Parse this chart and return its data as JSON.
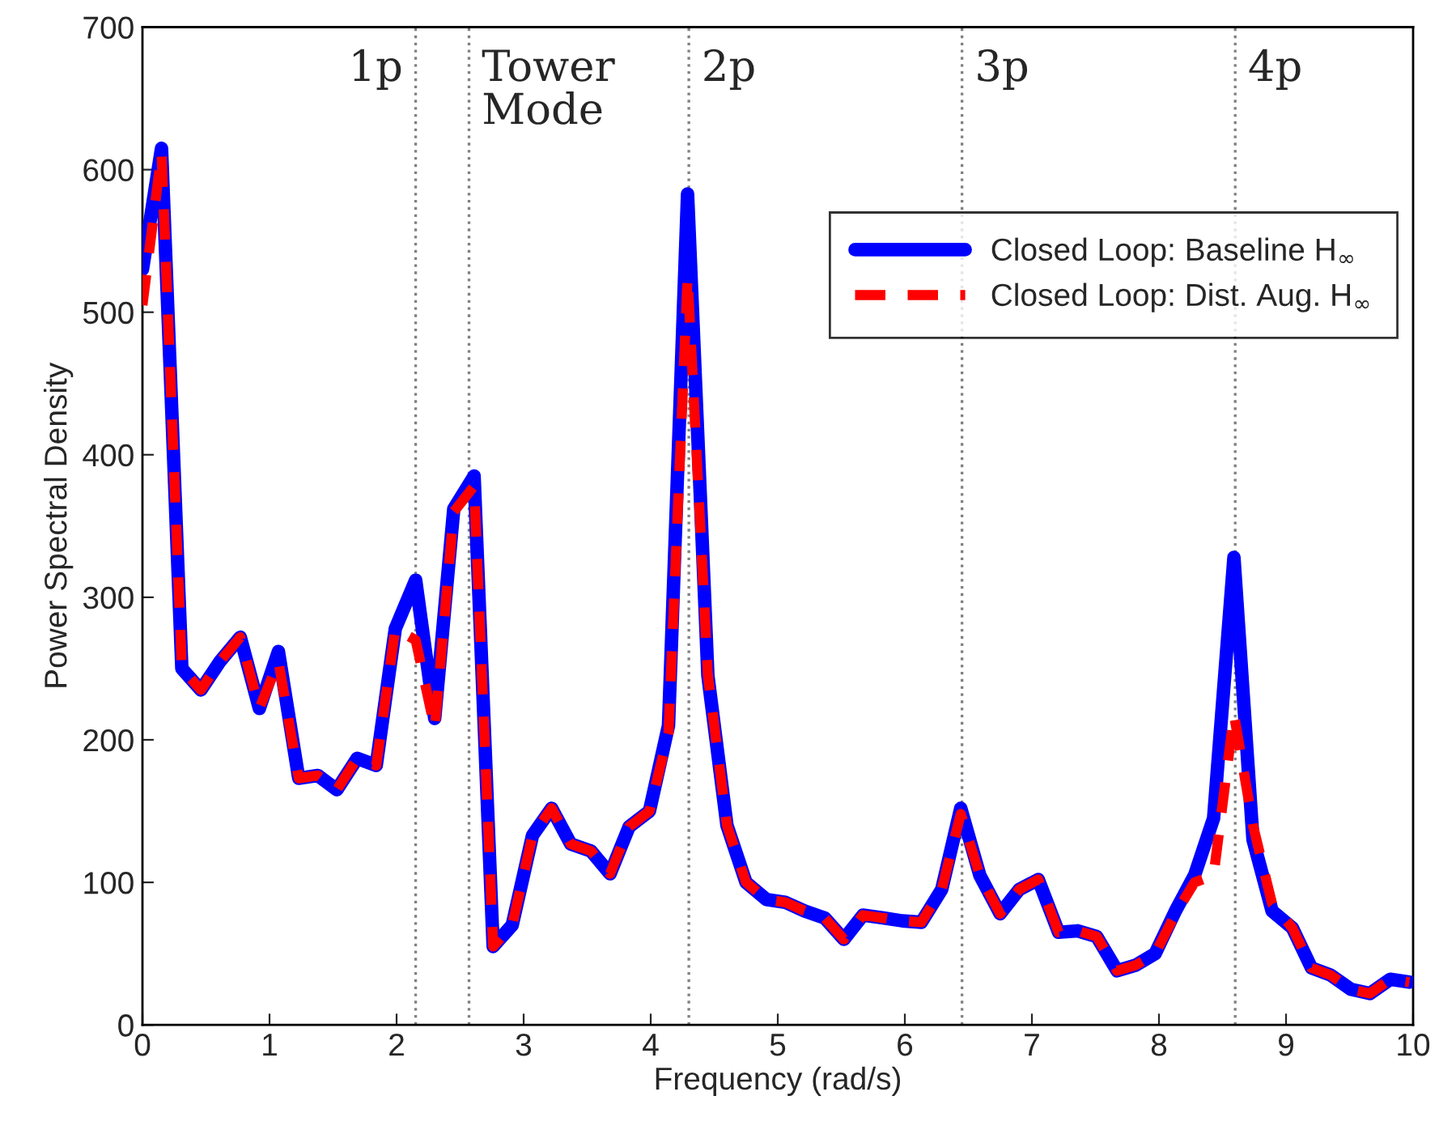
{
  "chart_data": {
    "type": "line",
    "xlabel": "Frequency (rad/s)",
    "ylabel": "Power Spectral Density",
    "x": [
      0,
      0.15,
      0.31,
      0.46,
      0.61,
      0.77,
      0.92,
      1.07,
      1.23,
      1.38,
      1.53,
      1.69,
      1.84,
      1.99,
      2.15,
      2.3,
      2.45,
      2.61,
      2.76,
      2.91,
      3.07,
      3.22,
      3.37,
      3.53,
      3.68,
      3.83,
      3.99,
      4.14,
      4.29,
      4.45,
      4.6,
      4.75,
      4.91,
      5.06,
      5.21,
      5.37,
      5.52,
      5.67,
      5.83,
      5.98,
      6.13,
      6.29,
      6.44,
      6.59,
      6.75,
      6.9,
      7.05,
      7.21,
      7.36,
      7.51,
      7.67,
      7.82,
      7.97,
      8.13,
      8.28,
      8.43,
      8.59,
      8.74,
      8.89,
      9.05,
      9.2,
      9.35,
      9.51,
      9.66,
      9.82,
      9.97
    ],
    "series": [
      {
        "name": "Closed Loop: Baseline H$_{∞}$",
        "color": "#0000ff",
        "line_style": "solid",
        "values": [
          530,
          615,
          250,
          235,
          255,
          272,
          222,
          262,
          173,
          175,
          165,
          187,
          182,
          278,
          312,
          215,
          362,
          385,
          55,
          70,
          133,
          152,
          127,
          122,
          106,
          139,
          150,
          210,
          583,
          245,
          140,
          100,
          88,
          86,
          80,
          75,
          60,
          77,
          75,
          73,
          72,
          95,
          152,
          105,
          78,
          95,
          102,
          65,
          66,
          62,
          38,
          42,
          50,
          80,
          105,
          145,
          328,
          130,
          80,
          68,
          40,
          35,
          25,
          22,
          32,
          30
        ]
      },
      {
        "name": "Closed Loop: Dist. Aug. H$_{∞}$",
        "color": "#ff0000",
        "line_style": "dashed",
        "values": [
          505,
          612,
          250,
          235,
          255,
          272,
          222,
          255,
          173,
          175,
          165,
          187,
          182,
          278,
          270,
          208,
          360,
          378,
          55,
          70,
          133,
          152,
          127,
          122,
          106,
          139,
          150,
          205,
          525,
          245,
          140,
          100,
          88,
          86,
          80,
          75,
          60,
          77,
          75,
          73,
          72,
          95,
          148,
          105,
          78,
          95,
          102,
          65,
          66,
          62,
          38,
          42,
          50,
          78,
          100,
          105,
          218,
          140,
          85,
          68,
          40,
          35,
          25,
          22,
          32,
          30
        ]
      }
    ],
    "xlim": [
      0,
      10
    ],
    "xticks": [
      0,
      1,
      2,
      3,
      4,
      5,
      6,
      7,
      8,
      9,
      10
    ],
    "ylim": [
      0,
      700
    ],
    "yticks": [
      0,
      100,
      200,
      300,
      400,
      500,
      600,
      700
    ],
    "ref_lines": [
      {
        "axis": "x",
        "value": 2.15,
        "label": "1p",
        "color": "#808080",
        "line_style": "dotted"
      },
      {
        "axis": "x",
        "value": 2.57,
        "label": "Tower\nMode",
        "color": "#808080",
        "line_style": "dotted"
      },
      {
        "axis": "x",
        "value": 4.3,
        "label": "2p",
        "color": "#808080",
        "line_style": "dotted"
      },
      {
        "axis": "x",
        "value": 6.45,
        "label": "3p",
        "color": "#808080",
        "line_style": "dotted"
      },
      {
        "axis": "x",
        "value": 8.6,
        "label": "4p",
        "color": "#808080",
        "line_style": "dotted"
      }
    ],
    "grid": false,
    "legend": "top right"
  }
}
